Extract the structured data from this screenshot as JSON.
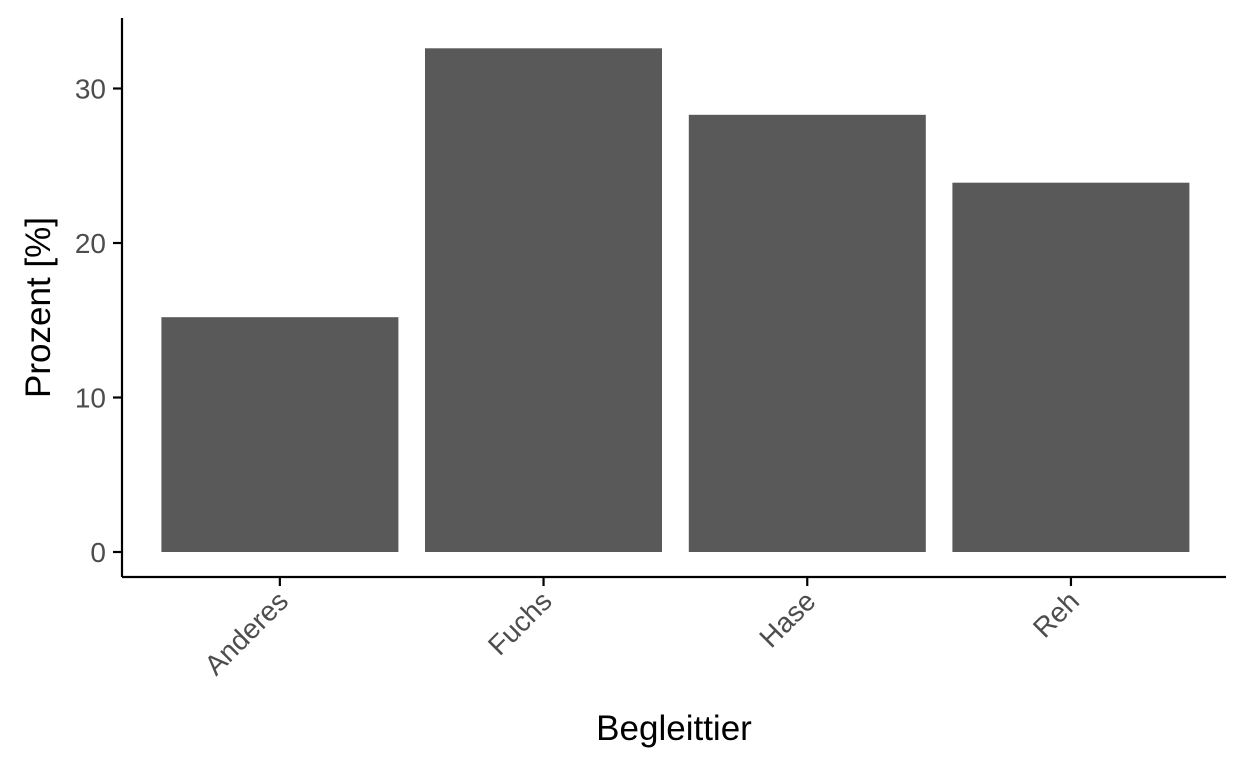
{
  "chart_data": {
    "type": "bar",
    "categories": [
      "Anderes",
      "Fuchs",
      "Hase",
      "Reh"
    ],
    "values": [
      15.2,
      32.6,
      28.3,
      23.9
    ],
    "title": "",
    "xlabel": "Begleittier",
    "ylabel": "Prozent [%]",
    "ylim": [
      0,
      34
    ],
    "yticks": [
      0,
      10,
      20,
      30
    ],
    "ytick_labels": [
      "0",
      "10",
      "20",
      "30"
    ],
    "grid": false,
    "bar_color": "#595959",
    "x_tick_rotation_deg": -45
  }
}
